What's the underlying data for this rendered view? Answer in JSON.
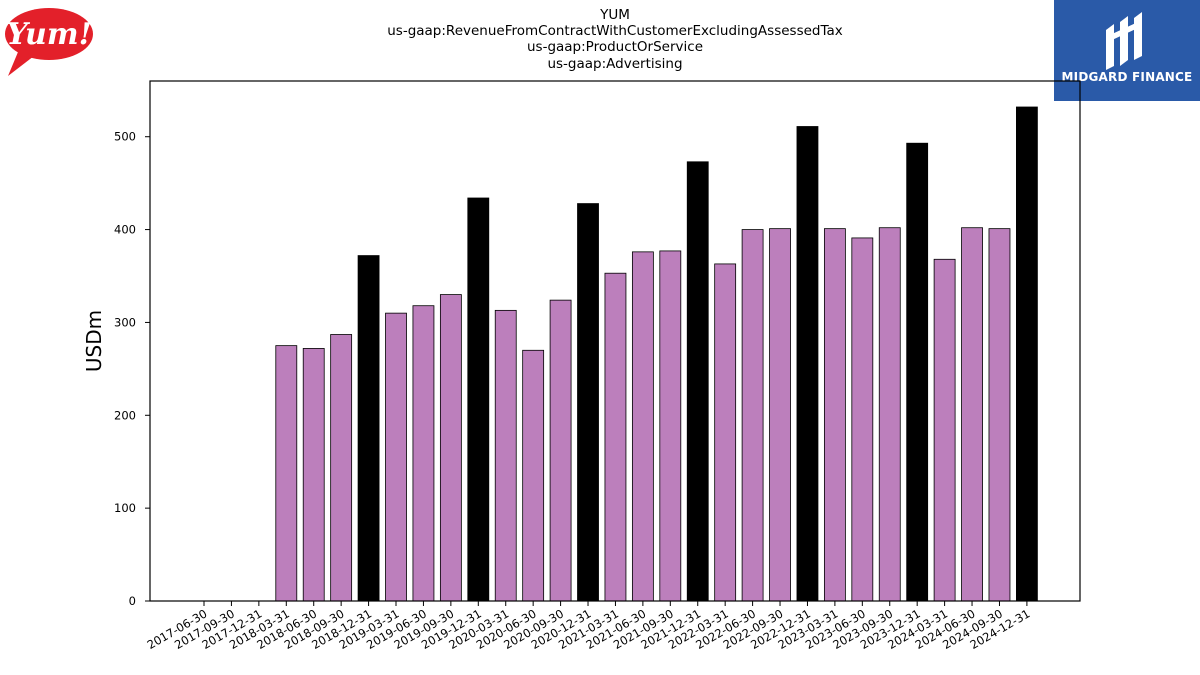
{
  "titles": [
    "YUM",
    "us-gaap:RevenueFromContractWithCustomerExcludingAssessedTax",
    "us-gaap:ProductOrService",
    "us-gaap:Advertising"
  ],
  "logos": {
    "left": "Yum!",
    "right": "MIDGARD FINANCE"
  },
  "colors": {
    "bar": "#bc7fbc",
    "highlight": "#000000",
    "yum_red": "#e3202a",
    "midgard_blue": "#2a5aa8"
  },
  "chart_data": {
    "type": "bar",
    "ylabel": "USDm",
    "ylim": [
      0,
      560
    ],
    "yticks": [
      0,
      100,
      200,
      300,
      400,
      500
    ],
    "grid": false,
    "categories": [
      "2017-06-30",
      "2017-09-30",
      "2017-12-31",
      "2018-03-31",
      "2018-06-30",
      "2018-09-30",
      "2018-12-31",
      "2019-03-31",
      "2019-06-30",
      "2019-09-30",
      "2019-12-31",
      "2020-03-31",
      "2020-06-30",
      "2020-09-30",
      "2020-12-31",
      "2021-03-31",
      "2021-06-30",
      "2021-09-30",
      "2021-12-31",
      "2022-03-31",
      "2022-06-30",
      "2022-09-30",
      "2022-12-31",
      "2023-03-31",
      "2023-06-30",
      "2023-09-30",
      "2023-12-31",
      "2024-03-31",
      "2024-06-30",
      "2024-09-30",
      "2024-12-31"
    ],
    "values": [
      null,
      null,
      null,
      275,
      272,
      287,
      372,
      310,
      318,
      330,
      434,
      313,
      270,
      324,
      428,
      353,
      376,
      377,
      473,
      363,
      400,
      401,
      511,
      401,
      391,
      402,
      493,
      368,
      402,
      401,
      532
    ],
    "highlight": [
      false,
      false,
      false,
      false,
      false,
      false,
      true,
      false,
      false,
      false,
      true,
      false,
      false,
      false,
      true,
      false,
      false,
      false,
      true,
      false,
      false,
      false,
      true,
      false,
      false,
      false,
      true,
      false,
      false,
      false,
      true
    ]
  }
}
